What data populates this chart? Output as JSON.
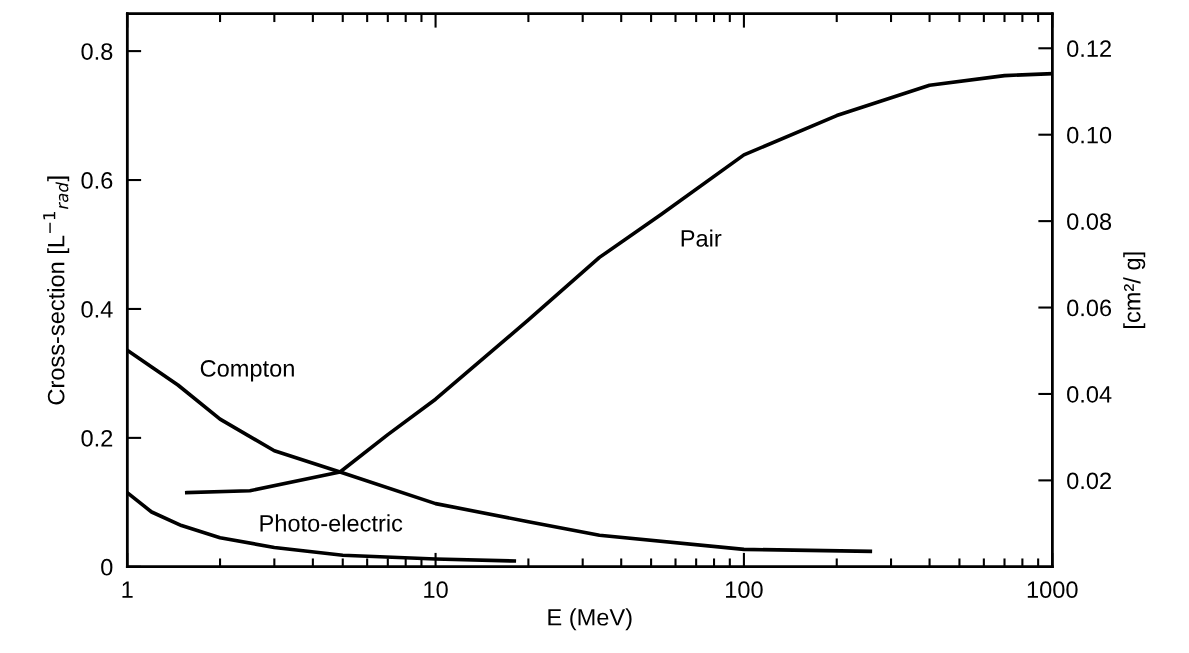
{
  "chart_data": {
    "type": "line",
    "xlabel": "E (MeV)",
    "ylabel": "Cross-section [L$^{−1}$$_{rad}$]",
    "y2label": "[cm²/ g]",
    "log": "x",
    "xlim": [
      1,
      1000
    ],
    "xticks": [
      1,
      10,
      100,
      1000
    ],
    "ylim": [
      0,
      0.858
    ],
    "yticks": [
      0,
      0.2,
      0.4,
      0.6,
      0.8
    ],
    "y2lim": [
      0,
      0.128
    ],
    "y2ticks": [
      0.02,
      0.04,
      0.06,
      {
        "value": 0.08,
        "label": "0.08"
      },
      {
        "value": 0.1,
        "label": "0.10"
      },
      0.12
    ],
    "grid": false,
    "marker": "none",
    "line_style": "solid",
    "series": [
      {
        "color": "#000000",
        "x": [
          1,
          1.2,
          1.46,
          2,
          3,
          4.9,
          10,
          20,
          34,
          100,
          257
        ],
        "values": [
          0.336,
          0.31,
          0.282,
          0.229,
          0.18,
          0.147,
          0.098,
          0.07,
          0.049,
          0.027,
          0.024
        ]
      },
      {
        "color": "#000000",
        "x": [
          1.56,
          2.5,
          4.9,
          7,
          10,
          20,
          34,
          54,
          100,
          200,
          400,
          700,
          1000
        ],
        "values": [
          0.115,
          0.118,
          0.147,
          0.205,
          0.26,
          0.383,
          0.48,
          0.547,
          0.639,
          0.7,
          0.747,
          0.762,
          0.765
        ]
      },
      {
        "color": "#000000",
        "x": [
          1,
          1.2,
          1.5,
          2,
          3,
          5,
          10,
          18
        ],
        "values": [
          0.115,
          0.085,
          0.064,
          0.045,
          0.03,
          0.018,
          0.012,
          0.009
        ]
      }
    ],
    "annotations": [
      "Compton",
      "Pair",
      "Photo-electric"
    ]
  }
}
